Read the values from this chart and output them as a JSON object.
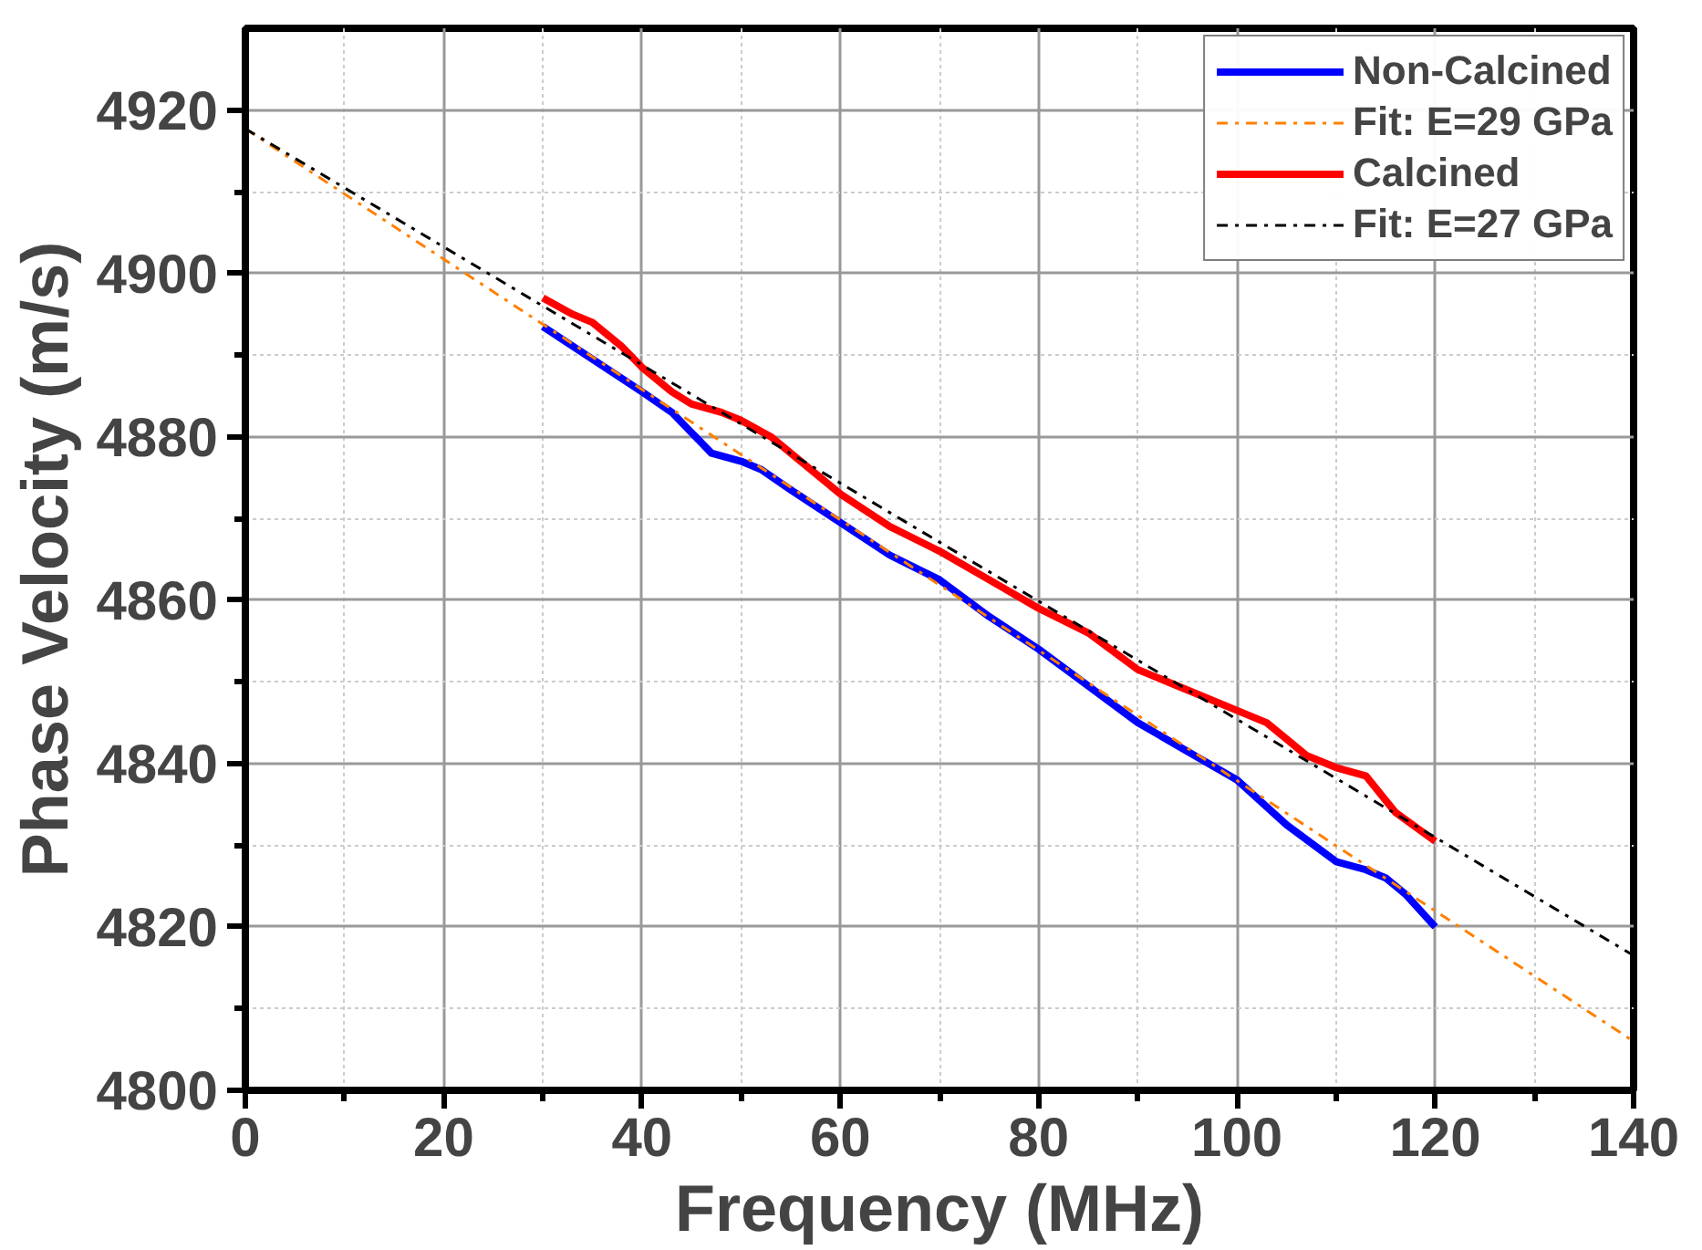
{
  "chart_data": {
    "type": "line",
    "xlabel": "Frequency (MHz)",
    "ylabel": "Phase Velocity (m/s)",
    "xlim": [
      0,
      140
    ],
    "ylim": [
      4800,
      4930
    ],
    "xticks": [
      0,
      20,
      40,
      60,
      80,
      100,
      120,
      140
    ],
    "yticks": [
      4800,
      4820,
      4840,
      4860,
      4880,
      4900,
      4920
    ],
    "grid": true,
    "legend": "top right",
    "line_style": "solid",
    "marker": "none",
    "series": [
      {
        "name": "Non-Calcined",
        "color": "#0000ff",
        "x": [
          30,
          35,
          40,
          43,
          45,
          47,
          50,
          52,
          55,
          60,
          65,
          70,
          75,
          80,
          85,
          90,
          95,
          100,
          105,
          110,
          113,
          115,
          117,
          120
        ],
        "values": [
          4893.5,
          4889.5,
          4885.5,
          4883,
          4880.5,
          4878,
          4877,
          4876,
          4873.5,
          4869.5,
          4865.5,
          4862.5,
          4858,
          4854,
          4849.5,
          4845,
          4841.5,
          4838,
          4832.5,
          4828,
          4827,
          4826,
          4824,
          4820
        ]
      },
      {
        "name": "Fit: E=29 GPa",
        "color": "#ff8000",
        "type": "line",
        "line_style": "dashdot",
        "x": [
          0,
          140
        ],
        "values": [
          4917.7,
          4806
        ]
      },
      {
        "name": "Calcined",
        "color": "#ff0000",
        "x": [
          30,
          33,
          35,
          38,
          40,
          43,
          45,
          48,
          50,
          53,
          55,
          60,
          65,
          70,
          75,
          80,
          85,
          90,
          95,
          100,
          103,
          107,
          110,
          113,
          116,
          120
        ],
        "values": [
          4897,
          4895,
          4894,
          4891,
          4888.5,
          4885.5,
          4884,
          4883,
          4882,
          4880,
          4878,
          4873,
          4869,
          4866,
          4862.5,
          4859,
          4856,
          4851.5,
          4849,
          4846.5,
          4845,
          4841,
          4839.5,
          4838.5,
          4834,
          4830.5
        ]
      },
      {
        "name": "Fit: E=27 GPa",
        "color": "#000000",
        "type": "line",
        "line_style": "dashdot",
        "x": [
          0,
          140
        ],
        "values": [
          4917.7,
          4816.5
        ]
      }
    ]
  }
}
